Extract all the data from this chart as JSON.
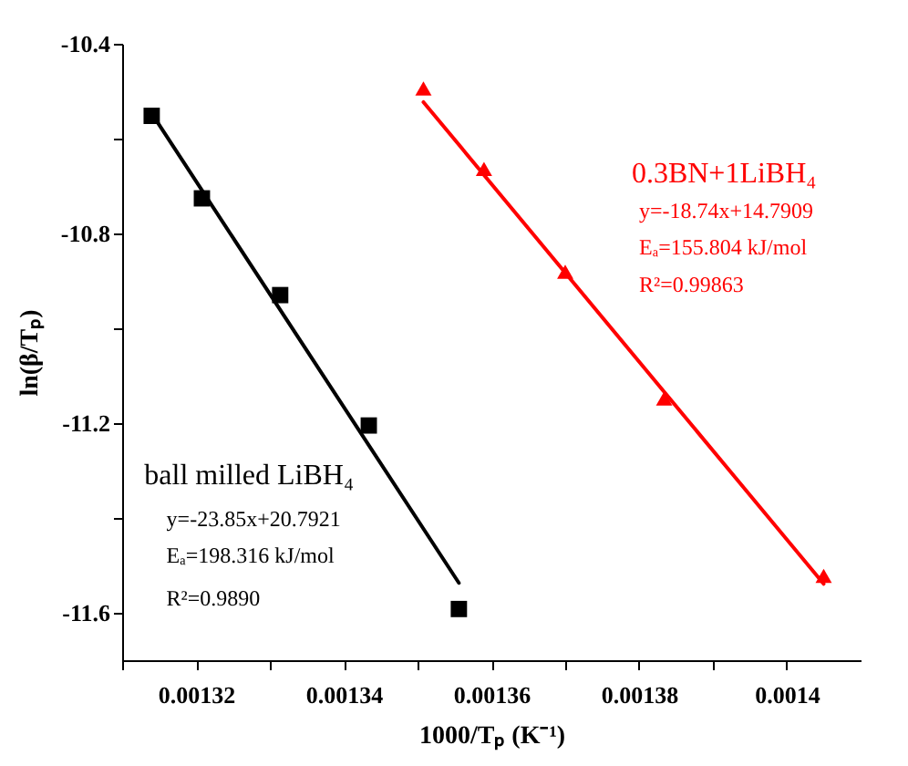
{
  "chart_data": {
    "type": "scatter",
    "xlabel": "1000/Tₚ (K⁻¹)",
    "ylabel": "ln(β/Tₚ)",
    "xlim": [
      0.00131,
      0.00141
    ],
    "ylim": [
      -11.7,
      -10.4
    ],
    "xticks": [
      {
        "value": 0.00131,
        "label": null
      },
      0.00132,
      {
        "value": 0.00133,
        "label": null
      },
      0.00134,
      {
        "value": 0.00135,
        "label": null
      },
      0.00136,
      {
        "value": 0.00137,
        "label": null
      },
      0.00138,
      {
        "value": 0.00139,
        "label": null
      },
      0.0014
    ],
    "yticks": [
      -10.4,
      {
        "value": -10.6,
        "label": null
      },
      -10.8,
      {
        "value": -11.0,
        "label": null
      },
      -11.2,
      {
        "value": -11.4,
        "label": null
      },
      -11.6
    ],
    "grid": false,
    "series": [
      {
        "marker": "square",
        "color": "#000000",
        "x": [
          0.001314,
          0.0013208,
          0.0013314,
          0.0013434,
          0.0013556
        ],
        "values": [
          -10.552,
          -10.726,
          -10.93,
          -11.205,
          -11.592
        ]
      },
      {
        "type": "line",
        "marker": "none",
        "line_style": "solid",
        "color": "#000000",
        "x": [
          0.001314,
          0.0013556
        ],
        "values": [
          -10.547,
          -11.537
        ]
      },
      {
        "marker": "triangle",
        "color": "#ff0000",
        "x": [
          0.0013508,
          0.001359,
          0.00137,
          0.0013834,
          0.001405
        ],
        "values": [
          -10.494,
          -10.664,
          -10.881,
          -11.148,
          -11.522
        ]
      },
      {
        "type": "line",
        "marker": "none",
        "line_style": "solid",
        "color": "#ff0000",
        "x": [
          0.0013508,
          0.001405
        ],
        "values": [
          -10.523,
          -11.539
        ]
      }
    ],
    "annotations": [
      "ball milled LiBH₄",
      "y=-23.85x+20.7921",
      "Eₐ=198.316 kJ/mol",
      "R²=0.9890",
      "0.3BN+1LiBH₄",
      "y=-18.74x+14.7909",
      "Eₐ=155.804 kJ/mol",
      "R²=0.99863"
    ]
  }
}
